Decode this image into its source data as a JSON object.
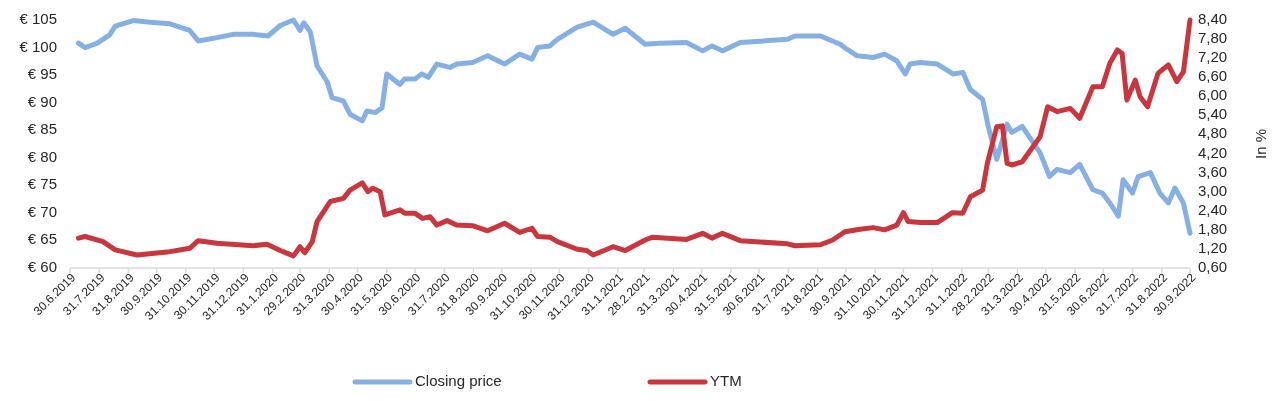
{
  "chart_data": {
    "type": "line",
    "y2label": "In %",
    "legend": "bottom",
    "xlim": [
      "2019-06-30",
      "2022-09-30"
    ],
    "xticks": [
      {
        "value": "2019-06-30",
        "label": "30.6.2019"
      },
      {
        "value": "2019-07-31",
        "label": "31.7.2019"
      },
      {
        "value": "2019-08-31",
        "label": "31.8.2019"
      },
      {
        "value": "2019-09-30",
        "label": "30.9.2019"
      },
      {
        "value": "2019-10-31",
        "label": "31.10.2019"
      },
      {
        "value": "2019-11-30",
        "label": "30.11.2019"
      },
      {
        "value": "2019-12-31",
        "label": "31.12.2019"
      },
      {
        "value": "2020-01-31",
        "label": "31.1.2020"
      },
      {
        "value": "2020-02-29",
        "label": "29.2.2020"
      },
      {
        "value": "2020-03-31",
        "label": "31.3.2020"
      },
      {
        "value": "2020-04-30",
        "label": "30.4.2020"
      },
      {
        "value": "2020-05-31",
        "label": "31.5.2020"
      },
      {
        "value": "2020-06-30",
        "label": "30.6.2020"
      },
      {
        "value": "2020-07-31",
        "label": "31.7.2020"
      },
      {
        "value": "2020-08-31",
        "label": "31.8.2020"
      },
      {
        "value": "2020-09-30",
        "label": "30.9.2020"
      },
      {
        "value": "2020-10-31",
        "label": "31.10.2020"
      },
      {
        "value": "2020-11-30",
        "label": "30.11.2020"
      },
      {
        "value": "2020-12-31",
        "label": "31.12.2020"
      },
      {
        "value": "2021-01-31",
        "label": "31.1.2021"
      },
      {
        "value": "2021-02-28",
        "label": "28.2.2021"
      },
      {
        "value": "2021-03-31",
        "label": "31.3.2021"
      },
      {
        "value": "2021-04-30",
        "label": "30.4.2021"
      },
      {
        "value": "2021-05-31",
        "label": "31.5.2021"
      },
      {
        "value": "2021-06-30",
        "label": "30.6.2021"
      },
      {
        "value": "2021-07-31",
        "label": "31.7.2021"
      },
      {
        "value": "2021-08-31",
        "label": "31.8.2021"
      },
      {
        "value": "2021-09-30",
        "label": "30.9.2021"
      },
      {
        "value": "2021-10-31",
        "label": "31.10.2021"
      },
      {
        "value": "2021-11-30",
        "label": "30.11.2021"
      },
      {
        "value": "2021-12-31",
        "label": "31.12.2021"
      },
      {
        "value": "2022-01-31",
        "label": "31.1.2022"
      },
      {
        "value": "2022-02-28",
        "label": "28.2.2022"
      },
      {
        "value": "2022-03-31",
        "label": "31.3.2022"
      },
      {
        "value": "2022-04-30",
        "label": "30.4.2022"
      },
      {
        "value": "2022-05-31",
        "label": "31.5.2022"
      },
      {
        "value": "2022-06-30",
        "label": "30.6.2022"
      },
      {
        "value": "2022-07-31",
        "label": "31.7.2022"
      },
      {
        "value": "2022-08-31",
        "label": "31.8.2022"
      },
      {
        "value": "2022-09-30",
        "label": "30.9.2022"
      }
    ],
    "ylim": [
      60,
      105
    ],
    "yticks": [
      {
        "value": 60,
        "label": "€ 60"
      },
      {
        "value": 65,
        "label": "€ 65"
      },
      {
        "value": 70,
        "label": "€ 70"
      },
      {
        "value": 75,
        "label": "€ 75"
      },
      {
        "value": 80,
        "label": "€ 80"
      },
      {
        "value": 85,
        "label": "€ 85"
      },
      {
        "value": 90,
        "label": "€ 90"
      },
      {
        "value": 95,
        "label": "€ 95"
      },
      {
        "value": 100,
        "label": "€ 100"
      },
      {
        "value": 105,
        "label": "€ 105"
      }
    ],
    "y2lim": [
      0.6,
      8.4
    ],
    "y2ticks": [
      {
        "value": 0.6,
        "label": "0,60"
      },
      {
        "value": 1.2,
        "label": "1,20"
      },
      {
        "value": 1.8,
        "label": "1,80"
      },
      {
        "value": 2.4,
        "label": "2,40"
      },
      {
        "value": 3.0,
        "label": "3,00"
      },
      {
        "value": 3.6,
        "label": "3,60"
      },
      {
        "value": 4.2,
        "label": "4,20"
      },
      {
        "value": 4.8,
        "label": "4,80"
      },
      {
        "value": 5.4,
        "label": "5,40"
      },
      {
        "value": 6.0,
        "label": "6,00"
      },
      {
        "value": 6.6,
        "label": "6,60"
      },
      {
        "value": 7.2,
        "label": "7,20"
      },
      {
        "value": 7.8,
        "label": "7,80"
      },
      {
        "value": 8.4,
        "label": "8,40"
      }
    ],
    "series": [
      {
        "name": "Closing price",
        "color": "#86b0e4",
        "x": [
          "2019-07-09",
          "2019-07-16",
          "2019-07-29",
          "2019-08-11",
          "2019-08-17",
          "2019-09-05",
          "2019-09-23",
          "2019-10-14",
          "2019-11-04",
          "2019-11-13",
          "2019-12-03",
          "2019-12-20",
          "2020-01-10",
          "2020-01-26",
          "2020-02-08",
          "2020-02-22",
          "2020-02-29",
          "2020-03-04",
          "2020-03-11",
          "2020-03-18",
          "2020-03-29",
          "2020-04-03",
          "2020-04-15",
          "2020-04-22",
          "2020-05-05",
          "2020-05-10",
          "2020-05-19",
          "2020-05-26",
          "2020-05-31",
          "2020-06-14",
          "2020-06-19",
          "2020-06-30",
          "2020-07-07",
          "2020-07-14",
          "2020-07-23",
          "2020-08-06",
          "2020-08-13",
          "2020-08-30",
          "2020-09-15",
          "2020-10-03",
          "2020-10-19",
          "2020-11-01",
          "2020-11-07",
          "2020-11-20",
          "2020-11-28",
          "2020-12-19",
          "2021-01-05",
          "2021-01-26",
          "2021-02-08",
          "2021-03-01",
          "2021-03-17",
          "2021-04-14",
          "2021-05-01",
          "2021-05-11",
          "2021-05-22",
          "2021-06-10",
          "2021-07-30",
          "2021-08-07",
          "2021-09-03",
          "2021-09-24",
          "2021-10-01",
          "2021-10-12",
          "2021-10-29",
          "2021-11-10",
          "2021-11-23",
          "2021-12-02",
          "2021-12-07",
          "2021-12-18",
          "2022-01-05",
          "2022-01-22",
          "2022-02-01",
          "2022-02-09",
          "2022-02-22",
          "2022-02-28",
          "2022-03-09",
          "2022-03-20",
          "2022-03-25",
          "2022-04-05",
          "2022-04-24",
          "2022-05-04",
          "2022-05-12",
          "2022-05-26",
          "2022-06-05",
          "2022-06-19",
          "2022-06-29",
          "2022-07-07",
          "2022-07-16",
          "2022-07-21",
          "2022-07-31",
          "2022-08-06",
          "2022-08-19",
          "2022-08-29",
          "2022-09-07",
          "2022-09-14",
          "2022-09-23",
          "2022-09-30"
        ],
        "values": [
          100.8,
          100.0,
          100.8,
          102.3,
          103.9,
          104.9,
          104.6,
          104.3,
          103.1,
          101.2,
          101.8,
          102.4,
          102.4,
          102.1,
          104.0,
          105.0,
          103.1,
          104.5,
          102.8,
          96.7,
          93.7,
          90.9,
          90.3,
          87.9,
          86.7,
          88.5,
          88.2,
          89.1,
          95.2,
          93.3,
          94.3,
          94.3,
          95.2,
          94.6,
          97.0,
          96.4,
          97.0,
          97.3,
          98.5,
          97.0,
          98.8,
          97.9,
          100.0,
          100.3,
          101.5,
          103.7,
          104.6,
          102.4,
          103.5,
          100.6,
          100.8,
          100.9,
          99.4,
          100.3,
          99.4,
          100.9,
          101.5,
          102.1,
          102.1,
          100.6,
          99.7,
          98.5,
          98.2,
          98.8,
          97.6,
          95.2,
          97.0,
          97.3,
          97.0,
          95.2,
          95.5,
          92.4,
          90.6,
          85.7,
          79.7,
          86.1,
          84.6,
          85.7,
          80.9,
          76.6,
          77.9,
          77.3,
          78.8,
          74.2,
          73.6,
          71.8,
          69.4,
          76.0,
          73.6,
          76.6,
          77.3,
          73.6,
          71.8,
          74.5,
          71.8,
          66.3
        ]
      },
      {
        "name": "YTM",
        "color": "#c9363e",
        "axis": "y2",
        "x": [
          "2019-07-09",
          "2019-07-16",
          "2019-08-04",
          "2019-08-17",
          "2019-09-09",
          "2019-10-11",
          "2019-11-04",
          "2019-11-13",
          "2019-12-03",
          "2020-01-10",
          "2020-01-25",
          "2020-02-08",
          "2020-02-22",
          "2020-02-29",
          "2020-03-05",
          "2020-03-13",
          "2020-03-18",
          "2020-04-01",
          "2020-04-15",
          "2020-04-22",
          "2020-05-05",
          "2020-05-11",
          "2020-05-16",
          "2020-05-24",
          "2020-05-29",
          "2020-06-14",
          "2020-06-19",
          "2020-06-30",
          "2020-07-08",
          "2020-07-16",
          "2020-07-23",
          "2020-08-03",
          "2020-08-13",
          "2020-08-30",
          "2020-09-15",
          "2020-10-03",
          "2020-10-19",
          "2020-11-01",
          "2020-11-07",
          "2020-11-20",
          "2020-11-28",
          "2020-12-19",
          "2020-12-29",
          "2021-01-05",
          "2021-01-26",
          "2021-02-08",
          "2021-03-01",
          "2021-03-09",
          "2021-04-14",
          "2021-05-01",
          "2021-05-11",
          "2021-05-22",
          "2021-06-10",
          "2021-07-30",
          "2021-08-07",
          "2021-09-03",
          "2021-09-16",
          "2021-09-29",
          "2021-10-15",
          "2021-10-29",
          "2021-11-10",
          "2021-11-23",
          "2021-11-30",
          "2021-12-05",
          "2021-12-18",
          "2022-01-05",
          "2022-01-21",
          "2022-02-01",
          "2022-02-09",
          "2022-02-22",
          "2022-02-27",
          "2022-03-09",
          "2022-03-15",
          "2022-03-20",
          "2022-03-25",
          "2022-04-05",
          "2022-04-24",
          "2022-05-02",
          "2022-05-12",
          "2022-05-26",
          "2022-06-05",
          "2022-06-19",
          "2022-06-29",
          "2022-07-07",
          "2022-07-15",
          "2022-07-20",
          "2022-07-25",
          "2022-08-03",
          "2022-08-08",
          "2022-08-16",
          "2022-08-27",
          "2022-09-07",
          "2022-09-16",
          "2022-09-23",
          "2022-09-30"
        ],
        "values": [
          1.54,
          1.59,
          1.43,
          1.17,
          1.01,
          1.1,
          1.22,
          1.46,
          1.38,
          1.3,
          1.35,
          1.15,
          0.98,
          1.27,
          1.08,
          1.43,
          2.06,
          2.69,
          2.79,
          3.05,
          3.28,
          3.0,
          3.11,
          3.0,
          2.27,
          2.43,
          2.32,
          2.32,
          2.16,
          2.21,
          1.95,
          2.09,
          1.95,
          1.93,
          1.77,
          2.01,
          1.72,
          1.85,
          1.59,
          1.57,
          1.43,
          1.19,
          1.15,
          1.01,
          1.27,
          1.15,
          1.48,
          1.57,
          1.5,
          1.69,
          1.54,
          1.69,
          1.46,
          1.36,
          1.3,
          1.33,
          1.48,
          1.74,
          1.82,
          1.87,
          1.8,
          1.95,
          2.34,
          2.06,
          2.03,
          2.03,
          2.34,
          2.32,
          2.84,
          3.05,
          3.89,
          5.04,
          5.07,
          3.89,
          3.84,
          3.94,
          4.73,
          5.67,
          5.52,
          5.62,
          5.31,
          6.3,
          6.3,
          7.04,
          7.46,
          7.35,
          5.88,
          6.51,
          5.99,
          5.67,
          6.72,
          6.99,
          6.46,
          6.77,
          8.4
        ]
      }
    ]
  }
}
